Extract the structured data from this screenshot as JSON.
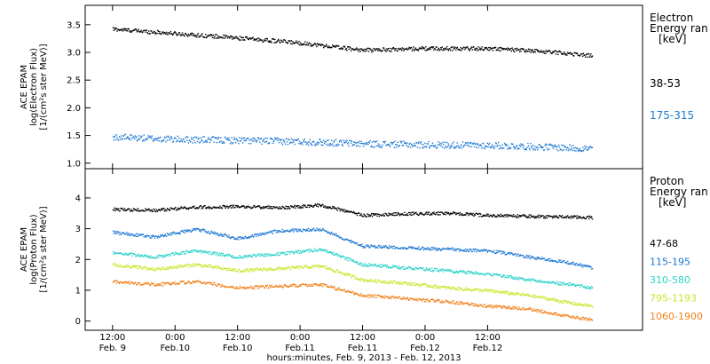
{
  "chart_data": [
    {
      "type": "scatter",
      "ylabel_lines": [
        "ACE EPAM",
        "log(Electron Flux)",
        "[1/(cm²s ster MeV)]"
      ],
      "ylim": [
        0.9,
        3.85
      ],
      "yticks": [
        "1.0",
        "1.5",
        "2.0",
        "2.5",
        "3.0",
        "3.5"
      ],
      "ytick_values": [
        1.0,
        1.5,
        2.0,
        2.5,
        3.0,
        3.5
      ],
      "legend_title": [
        "Electron",
        "Energy ran",
        "[keV]"
      ],
      "series": [
        {
          "name": "38-53",
          "color": "#000000",
          "x": [
            0,
            12,
            24,
            36,
            48,
            60,
            72,
            84,
            92
          ],
          "values": [
            3.43,
            3.35,
            3.27,
            3.18,
            3.05,
            3.08,
            3.08,
            3.02,
            2.95
          ]
        },
        {
          "name": "175-315",
          "color": "#1e78d2",
          "x": [
            0,
            12,
            24,
            36,
            48,
            60,
            72,
            84,
            92
          ],
          "values": [
            1.48,
            1.44,
            1.42,
            1.4,
            1.36,
            1.34,
            1.33,
            1.3,
            1.27
          ]
        }
      ]
    },
    {
      "type": "scatter",
      "ylabel_lines": [
        "ACE EPAM",
        "log(Proton Flux)",
        "[1/(cm²s ster MeV)]"
      ],
      "ylim": [
        -0.3,
        4.95
      ],
      "yticks": [
        "0",
        "1",
        "2",
        "3",
        "4"
      ],
      "ytick_values": [
        0,
        1,
        2,
        3,
        4
      ],
      "legend_title": [
        "Proton",
        "Energy ran",
        "[keV]"
      ],
      "series": [
        {
          "name": "47-68",
          "color": "#000000",
          "x": [
            0,
            8,
            16,
            24,
            32,
            40,
            48,
            56,
            64,
            72,
            80,
            88,
            92
          ],
          "values": [
            3.65,
            3.62,
            3.72,
            3.74,
            3.7,
            3.78,
            3.45,
            3.5,
            3.52,
            3.45,
            3.42,
            3.4,
            3.38
          ]
        },
        {
          "name": "115-195",
          "color": "#1e78d2",
          "x": [
            0,
            8,
            16,
            24,
            32,
            40,
            48,
            56,
            64,
            72,
            80,
            88,
            92
          ],
          "values": [
            2.9,
            2.75,
            3.0,
            2.7,
            2.95,
            3.0,
            2.45,
            2.4,
            2.35,
            2.3,
            2.1,
            1.9,
            1.75
          ]
        },
        {
          "name": "310-580",
          "color": "#28d2c8",
          "x": [
            0,
            8,
            16,
            24,
            32,
            40,
            48,
            56,
            64,
            72,
            80,
            88,
            92
          ],
          "values": [
            2.25,
            2.1,
            2.3,
            2.1,
            2.2,
            2.35,
            1.85,
            1.75,
            1.65,
            1.55,
            1.35,
            1.2,
            1.1
          ]
        },
        {
          "name": "795-1193",
          "color": "#c8e628",
          "x": [
            0,
            8,
            16,
            24,
            32,
            40,
            48,
            56,
            64,
            72,
            80,
            88,
            92
          ],
          "values": [
            1.85,
            1.7,
            1.85,
            1.65,
            1.72,
            1.8,
            1.35,
            1.25,
            1.1,
            1.0,
            0.85,
            0.6,
            0.5
          ]
        },
        {
          "name": "1060-1900",
          "color": "#f0821e",
          "x": [
            0,
            8,
            16,
            24,
            32,
            40,
            48,
            56,
            64,
            72,
            80,
            88,
            92
          ],
          "values": [
            1.3,
            1.2,
            1.3,
            1.1,
            1.15,
            1.2,
            0.85,
            0.75,
            0.65,
            0.5,
            0.4,
            0.15,
            0.05
          ]
        }
      ]
    }
  ],
  "xaxis": {
    "title": "hours:minutes, Feb.  9, 2013 - Feb. 12, 2013",
    "xlim": [
      -5.25,
      101.75
    ],
    "ticks": [
      {
        "x": 0,
        "time": "12:00",
        "date": "Feb. 9"
      },
      {
        "x": 12,
        "time": "0:00",
        "date": "Feb.10"
      },
      {
        "x": 24,
        "time": "12:00",
        "date": "Feb.10"
      },
      {
        "x": 36,
        "time": "0:00",
        "date": "Feb.11"
      },
      {
        "x": 48,
        "time": "12:00",
        "date": "Feb.11"
      },
      {
        "x": 60,
        "time": "0:00",
        "date": "Feb.12"
      },
      {
        "x": 72,
        "time": "12:00",
        "date": "Feb.12"
      }
    ]
  }
}
